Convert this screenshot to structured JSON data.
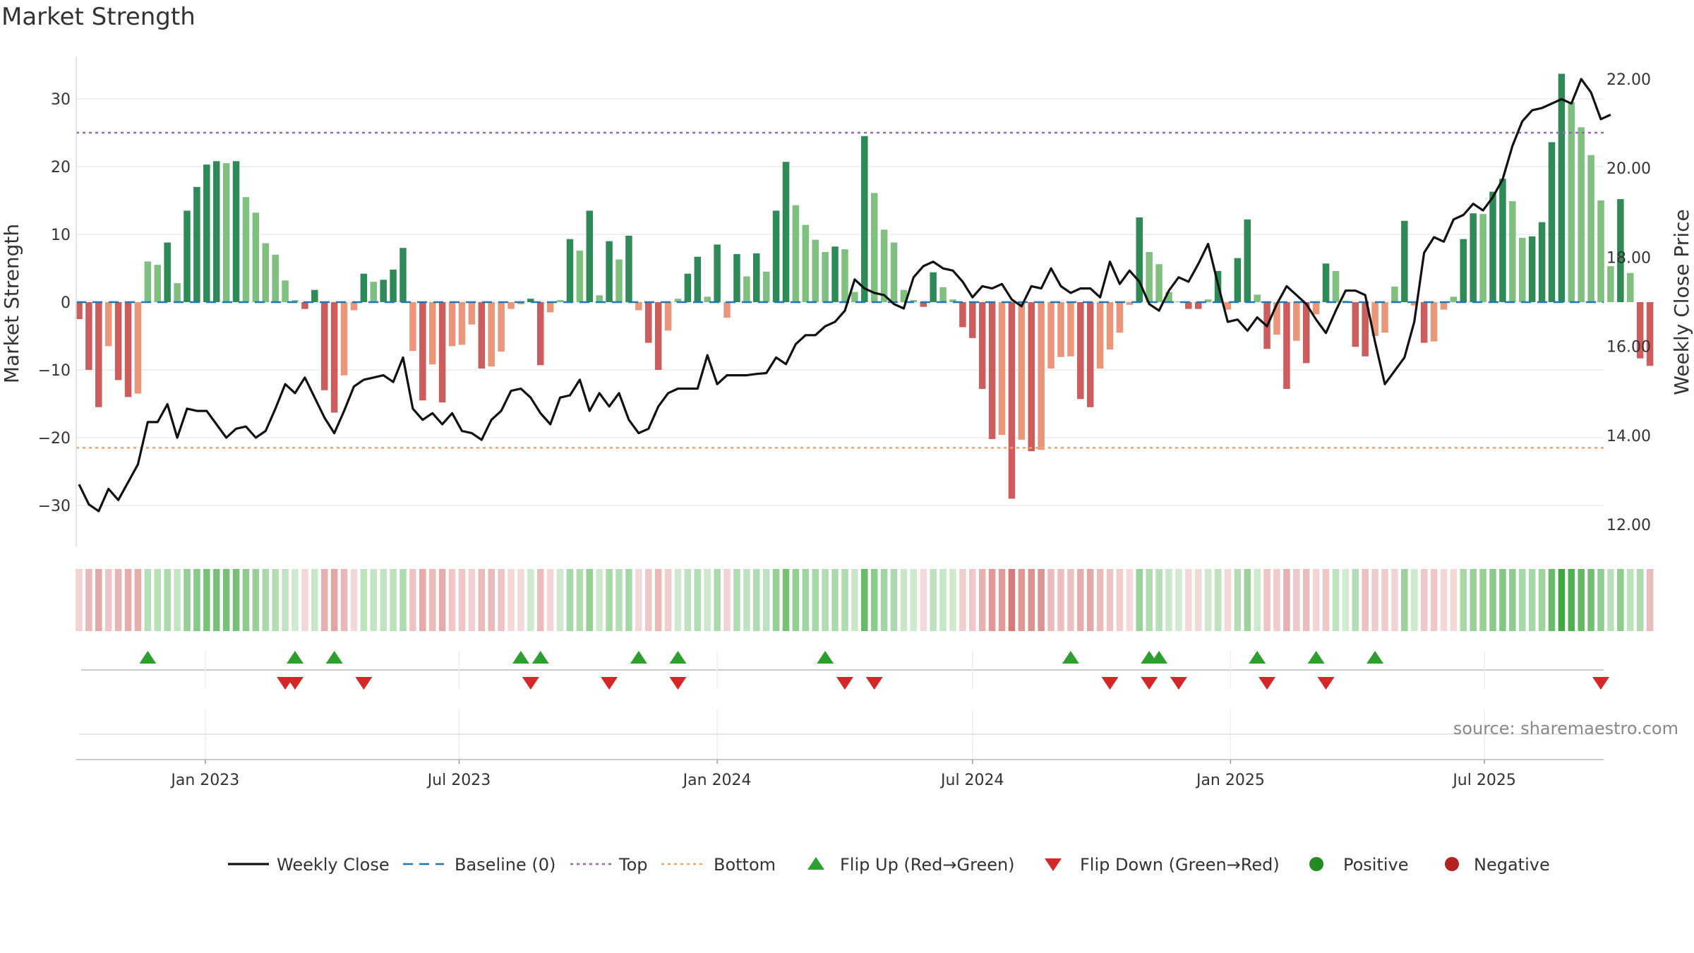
{
  "title": "Market Strength",
  "source_text": "source: sharemaestro.com",
  "colors": {
    "positive_strong": "#2e8b57",
    "positive_light": "#7fbf7f",
    "negative_strong": "#cd5c5c",
    "negative_light": "#e9967a",
    "price_line": "#111111",
    "baseline": "#1f77b4",
    "top": "#9467bd",
    "bottom": "#f4a460",
    "flip_up": "#2ca02c",
    "flip_down": "#d62728",
    "positive_dot": "#228b22",
    "negative_dot": "#b22222"
  },
  "chart_data": {
    "type": "bar",
    "title": "Market Strength",
    "ylabel": "Market Strength",
    "y2label": "Weekly Close Price",
    "ylim": [
      -36,
      36
    ],
    "y2lim": [
      11.0,
      22.8
    ],
    "yticks": [
      30,
      20,
      10,
      0,
      -10,
      -20,
      -30
    ],
    "yticklabels": [
      "30",
      "20",
      "10",
      "0",
      "−10",
      "−20",
      "−30"
    ],
    "y2ticks": [
      22,
      20,
      18,
      16,
      14,
      12
    ],
    "y2ticklabels": [
      "22.00",
      "20.00",
      "18.00",
      "16.00",
      "14.00",
      "12.00"
    ],
    "x_start": "2022-10-03",
    "x_step_days": 7,
    "x_range": [
      "2022-10-01",
      "2025-09-24"
    ],
    "xticks": [
      "2023-01-01",
      "2023-07-01",
      "2024-01-01",
      "2024-07-01",
      "2025-01-01",
      "2025-07-01"
    ],
    "xticklabels": [
      "Jan 2023",
      "Jul 2023",
      "Jan 2024",
      "Jul 2024",
      "Jan 2025",
      "Jul 2025"
    ],
    "top_line": 25,
    "bottom_line": -21.5,
    "baseline": 0,
    "strength": [
      -2.5,
      -10,
      -15.5,
      -6.5,
      -11.5,
      -14,
      -13.5,
      6,
      5.5,
      8.8,
      2.8,
      13.5,
      17,
      20.3,
      20.8,
      20.5,
      20.8,
      15.5,
      13.2,
      8.7,
      7,
      3.2,
      0.3,
      -1,
      1.8,
      -13,
      -16.3,
      -10.8,
      -1.2,
      4.2,
      3,
      3.3,
      4.8,
      8,
      -7.2,
      -14.5,
      -9.2,
      -14.8,
      -6.5,
      -6.3,
      -3.3,
      -9.8,
      -9.5,
      -7.3,
      -1,
      -0.3,
      0.5,
      -9.3,
      -1.5,
      0.3,
      9.3,
      7.6,
      13.5,
      1,
      9,
      6.3,
      9.8,
      -1.2,
      -6,
      -10,
      -4.2,
      0.5,
      4.2,
      6.7,
      0.8,
      8.5,
      -2.3,
      7.1,
      3.8,
      7.2,
      4.5,
      13.5,
      20.7,
      14.3,
      11.4,
      9.2,
      7.4,
      8.2,
      7.8,
      1.5,
      24.5,
      16.1,
      10.7,
      8.8,
      1.8,
      0.3,
      -0.7,
      4.4,
      2.2,
      0.4,
      -3.7,
      -5.3,
      -12.8,
      -20.2,
      -19.6,
      -29,
      -20.3,
      -22,
      -21.8,
      -9.8,
      -8.1,
      -8,
      -14.3,
      -15.5,
      -9.8,
      -7,
      -4.5,
      -0.4,
      12.5,
      7.4,
      5.6,
      1.5,
      0.1,
      -1,
      -1,
      0.4,
      4.6,
      -1.1,
      6.5,
      12.2,
      1.1,
      -6.9,
      -4.8,
      -12.8,
      -5.7,
      -9,
      -1.8,
      5.7,
      4.6,
      0.2,
      -6.6,
      -8,
      -5,
      -4.5,
      2.3,
      12,
      -0.5,
      -6,
      -5.8,
      -1.1,
      0.8,
      9.3,
      13.1,
      13,
      16.3,
      18.2,
      14.9,
      9.5,
      9.7,
      11.8,
      23.6,
      33.7,
      29.5,
      25.8,
      21.7,
      15,
      5.3,
      15.2,
      4.3,
      -8.3,
      -9.4
    ],
    "close": [
      12.9,
      12.45,
      12.3,
      12.8,
      12.55,
      12.95,
      13.35,
      14.3,
      14.3,
      14.7,
      13.95,
      14.6,
      14.55,
      14.55,
      14.25,
      13.95,
      14.15,
      14.2,
      13.95,
      14.1,
      14.6,
      15.15,
      14.95,
      15.3,
      14.85,
      14.4,
      14.05,
      14.55,
      15.1,
      15.25,
      15.3,
      15.35,
      15.2,
      15.75,
      14.6,
      14.35,
      14.5,
      14.25,
      14.5,
      14.1,
      14.05,
      13.9,
      14.35,
      14.55,
      15,
      15.05,
      14.85,
      14.5,
      14.25,
      14.85,
      14.9,
      15.25,
      14.55,
      14.95,
      14.65,
      14.95,
      14.35,
      14.05,
      14.15,
      14.65,
      14.95,
      15.05,
      15.05,
      15.05,
      15.8,
      15.15,
      15.35,
      15.35,
      15.35,
      15.38,
      15.4,
      15.75,
      15.6,
      16.05,
      16.25,
      16.25,
      16.45,
      16.55,
      16.8,
      17.5,
      17.3,
      17.2,
      17.15,
      16.95,
      16.85,
      17.55,
      17.8,
      17.9,
      17.75,
      17.7,
      17.45,
      17.1,
      17.35,
      17.3,
      17.4,
      17.05,
      16.9,
      17.35,
      17.3,
      17.75,
      17.35,
      17.2,
      17.3,
      17.3,
      17.1,
      17.9,
      17.4,
      17.7,
      17.45,
      16.95,
      16.8,
      17.25,
      17.55,
      17.45,
      17.85,
      18.3,
      17.4,
      16.55,
      16.6,
      16.35,
      16.65,
      16.45,
      16.95,
      17.35,
      17.15,
      16.95,
      16.6,
      16.3,
      16.8,
      17.25,
      17.25,
      17.15,
      16.1,
      15.15,
      15.45,
      15.75,
      16.55,
      18.1,
      18.45,
      18.35,
      18.85,
      18.95,
      19.2,
      19.05,
      19.35,
      19.75,
      20.5,
      21.05,
      21.3,
      21.35,
      21.45,
      21.55,
      21.45,
      22,
      21.7,
      21.1,
      21.2
    ],
    "regime": [
      -1,
      -1,
      -1,
      -1,
      -1,
      -1,
      -1,
      1,
      1,
      1,
      1,
      1,
      1,
      1,
      1,
      1,
      1,
      1,
      1,
      1,
      1,
      1,
      1,
      -1,
      1,
      -1,
      -1,
      -1,
      -1,
      1,
      1,
      1,
      1,
      1,
      -1,
      -1,
      -1,
      -1,
      -1,
      -1,
      -1,
      -1,
      -1,
      -1,
      -1,
      -1,
      1,
      -1,
      -1,
      1,
      1,
      1,
      1,
      1,
      1,
      1,
      1,
      -1,
      -1,
      -1,
      -1,
      1,
      1,
      1,
      1,
      1,
      -1,
      1,
      1,
      1,
      1,
      1,
      1,
      1,
      1,
      1,
      1,
      1,
      1,
      1,
      1,
      1,
      1,
      1,
      1,
      1,
      -1,
      1,
      1,
      1,
      -1,
      -1,
      -1,
      -1,
      -1,
      -1,
      -1,
      -1,
      -1,
      -1,
      -1,
      -1,
      -1,
      -1,
      -1,
      -1,
      -1,
      -1,
      1,
      1,
      1,
      1,
      1,
      -1,
      -1,
      1,
      1,
      -1,
      1,
      1,
      1,
      -1,
      -1,
      -1,
      -1,
      -1,
      -1,
      -1,
      1,
      1,
      1,
      -1,
      -1,
      -1,
      -1,
      1,
      1,
      -1,
      -1,
      -1,
      -1,
      1,
      1,
      1,
      1,
      1,
      1,
      1,
      1,
      1,
      1,
      1,
      1,
      1,
      1,
      1,
      1,
      1,
      1,
      1,
      -1,
      -1
    ],
    "flip_up": [
      "2022-11-21",
      "2023-03-06",
      "2023-04-03",
      "2023-08-14",
      "2023-08-28",
      "2023-11-06",
      "2023-12-04",
      "2024-03-18",
      "2024-09-09",
      "2024-11-04",
      "2024-11-11",
      "2025-01-20",
      "2025-03-03",
      "2025-04-14"
    ],
    "flip_down": [
      "2023-02-27",
      "2023-03-06",
      "2023-04-24",
      "2023-08-21",
      "2023-10-16",
      "2023-12-04",
      "2024-04-01",
      "2024-04-22",
      "2024-10-07",
      "2024-11-04",
      "2024-11-25",
      "2025-01-27",
      "2025-03-10",
      "2025-09-22"
    ]
  },
  "legend": {
    "items": [
      {
        "label": "Weekly Close",
        "kind": "line-solid"
      },
      {
        "label": "Baseline (0)",
        "kind": "line-dashed"
      },
      {
        "label": "Top",
        "kind": "line-dotted-top"
      },
      {
        "label": "Bottom",
        "kind": "line-dotted-bottom"
      },
      {
        "label": "Flip Up (Red→Green)",
        "kind": "triangle-up"
      },
      {
        "label": "Flip Down (Green→Red)",
        "kind": "triangle-down"
      },
      {
        "label": "Positive",
        "kind": "dot-positive"
      },
      {
        "label": "Negative",
        "kind": "dot-negative"
      }
    ]
  }
}
